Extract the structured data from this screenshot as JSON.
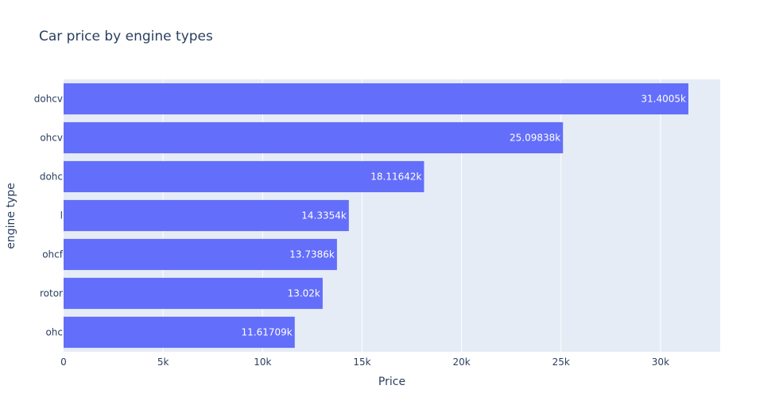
{
  "chart_data": {
    "type": "bar",
    "orientation": "horizontal",
    "title": "Car price by engine types",
    "xlabel": "Price",
    "ylabel": "engine type",
    "categories": [
      "dohcv",
      "ohcv",
      "dohc",
      "l",
      "ohcf",
      "rotor",
      "ohc"
    ],
    "values": [
      31400.5,
      25098.38,
      18116.42,
      14335.4,
      13738.6,
      13020,
      11617.09
    ],
    "data_labels": [
      "31.4005k",
      "25.09838k",
      "18.11642k",
      "14.3354k",
      "13.7386k",
      "13.02k",
      "11.61709k"
    ],
    "xlim": [
      0,
      33000
    ],
    "x_ticks": [
      0,
      5000,
      10000,
      15000,
      20000,
      25000,
      30000
    ],
    "x_tick_labels": [
      "0",
      "5k",
      "10k",
      "15k",
      "20k",
      "25k",
      "30k"
    ],
    "grid": true,
    "colors": {
      "bar": "#636efa",
      "plot_bg": "#e5ecf6",
      "grid": "#ffffff",
      "text": "#2a3f5f"
    }
  }
}
